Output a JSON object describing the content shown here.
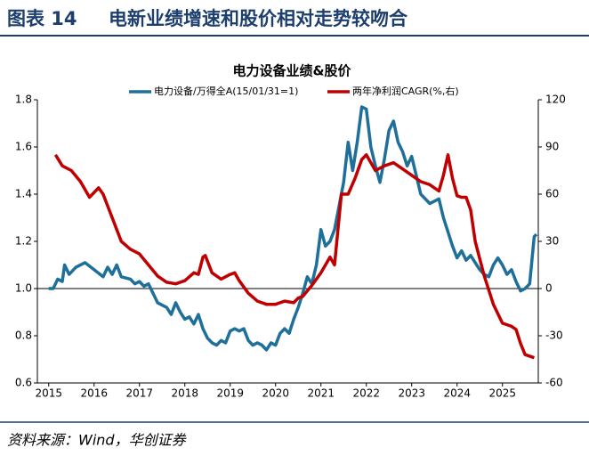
{
  "header": {
    "label": "图表 14",
    "title": "电新业绩增速和股价相对走势较吻合"
  },
  "source": "资料来源：Wind，华创证券",
  "chart_data": {
    "type": "line",
    "title": "电力设备业绩&股价",
    "xlim": [
      2014.75,
      2025.79
    ],
    "xticks": [
      2015,
      2016,
      2017,
      2018,
      2019,
      2020,
      2021,
      2022,
      2023,
      2024,
      2025
    ],
    "ylim": [
      0.6,
      1.8
    ],
    "yticks": [
      {
        "value": 1.8,
        "label": "1.8"
      },
      {
        "value": 1.6,
        "label": "1.6"
      },
      {
        "value": 1.4,
        "label": "1.4"
      },
      {
        "value": 1.2,
        "label": "1.2"
      },
      {
        "value": 1,
        "label": "1.0"
      },
      {
        "value": 0.8,
        "label": "0.8"
      },
      {
        "value": 0.6,
        "label": "0.6"
      }
    ],
    "y2lim": [
      -60,
      120
    ],
    "y2ticks": [
      120,
      90,
      60,
      30,
      0,
      -30,
      -60
    ],
    "grid": false,
    "series": [
      {
        "name": "电力设备/万得全A(15/01/31=1)",
        "color": "#1f6f9b",
        "axis": "y",
        "x": [
          2015.0,
          2015.1,
          2015.2,
          2015.3,
          2015.35,
          2015.45,
          2015.6,
          2015.8,
          2016.0,
          2016.2,
          2016.3,
          2016.4,
          2016.5,
          2016.6,
          2016.8,
          2016.9,
          2017.0,
          2017.1,
          2017.2,
          2017.3,
          2017.4,
          2017.6,
          2017.7,
          2017.8,
          2017.9,
          2018.0,
          2018.1,
          2018.2,
          2018.3,
          2018.4,
          2018.5,
          2018.6,
          2018.7,
          2018.8,
          2018.9,
          2019.0,
          2019.1,
          2019.2,
          2019.3,
          2019.4,
          2019.5,
          2019.6,
          2019.7,
          2019.8,
          2019.9,
          2020.0,
          2020.1,
          2020.2,
          2020.3,
          2020.4,
          2020.5,
          2020.6,
          2020.7,
          2020.8,
          2020.9,
          2021.0,
          2021.1,
          2021.2,
          2021.3,
          2021.4,
          2021.5,
          2021.6,
          2021.7,
          2021.8,
          2021.9,
          2022.0,
          2022.1,
          2022.2,
          2022.3,
          2022.4,
          2022.5,
          2022.6,
          2022.7,
          2022.8,
          2022.9,
          2023.0,
          2023.1,
          2023.2,
          2023.4,
          2023.6,
          2023.7,
          2023.8,
          2023.9,
          2024.0,
          2024.1,
          2024.2,
          2024.3,
          2024.4,
          2024.5,
          2024.6,
          2024.7,
          2024.8,
          2024.9,
          2025.0,
          2025.1,
          2025.2,
          2025.3,
          2025.4,
          2025.5,
          2025.6,
          2025.7,
          2025.75
        ],
        "values": [
          1.0,
          1.0,
          1.04,
          1.03,
          1.1,
          1.06,
          1.09,
          1.11,
          1.08,
          1.05,
          1.09,
          1.06,
          1.1,
          1.05,
          1.04,
          1.02,
          1.03,
          1.01,
          1.02,
          0.98,
          0.94,
          0.92,
          0.89,
          0.94,
          0.9,
          0.87,
          0.88,
          0.85,
          0.89,
          0.83,
          0.79,
          0.77,
          0.76,
          0.78,
          0.77,
          0.82,
          0.83,
          0.82,
          0.83,
          0.78,
          0.76,
          0.77,
          0.76,
          0.74,
          0.77,
          0.76,
          0.81,
          0.83,
          0.81,
          0.87,
          0.92,
          0.98,
          1.05,
          1.02,
          1.1,
          1.25,
          1.18,
          1.2,
          1.25,
          1.35,
          1.45,
          1.62,
          1.5,
          1.62,
          1.77,
          1.76,
          1.6,
          1.52,
          1.45,
          1.55,
          1.67,
          1.71,
          1.62,
          1.58,
          1.52,
          1.56,
          1.48,
          1.4,
          1.36,
          1.38,
          1.3,
          1.24,
          1.18,
          1.13,
          1.16,
          1.12,
          1.14,
          1.11,
          1.08,
          1.06,
          1.05,
          1.1,
          1.13,
          1.1,
          1.06,
          1.08,
          1.03,
          0.99,
          1.0,
          1.02,
          1.22,
          1.23
        ]
      },
      {
        "name": "两年净利润CAGR(%,右)",
        "color": "#c00000",
        "axis": "y2",
        "x": [
          2015.15,
          2015.3,
          2015.5,
          2015.7,
          2015.9,
          2016.1,
          2016.2,
          2016.4,
          2016.6,
          2016.8,
          2017.0,
          2017.2,
          2017.4,
          2017.6,
          2017.8,
          2018.0,
          2018.2,
          2018.3,
          2018.4,
          2018.45,
          2018.6,
          2018.8,
          2019.0,
          2019.1,
          2019.2,
          2019.4,
          2019.6,
          2019.8,
          2020.0,
          2020.2,
          2020.4,
          2020.5,
          2020.6,
          2020.8,
          2021.0,
          2021.1,
          2021.2,
          2021.3,
          2021.45,
          2021.6,
          2021.75,
          2021.9,
          2022.0,
          2022.2,
          2022.4,
          2022.6,
          2022.8,
          2023.0,
          2023.2,
          2023.4,
          2023.6,
          2023.7,
          2023.8,
          2023.9,
          2024.0,
          2024.1,
          2024.2,
          2024.3,
          2024.4,
          2024.6,
          2024.8,
          2025.0,
          2025.2,
          2025.3,
          2025.4,
          2025.5,
          2025.7
        ],
        "values": [
          85,
          78,
          75,
          68,
          58,
          64,
          60,
          45,
          30,
          25,
          22,
          15,
          8,
          4,
          3,
          5,
          10,
          9,
          20,
          21,
          10,
          6,
          9,
          10,
          5,
          -3,
          -8,
          -10,
          -10,
          -8,
          -9,
          -6,
          -5,
          2,
          10,
          15,
          20,
          15,
          60,
          60,
          70,
          82,
          85,
          75,
          78,
          80,
          76,
          72,
          68,
          66,
          62,
          72,
          85,
          70,
          59,
          58,
          58,
          50,
          30,
          8,
          -10,
          -22,
          -24,
          -26,
          -35,
          -42,
          -44
        ]
      }
    ]
  }
}
